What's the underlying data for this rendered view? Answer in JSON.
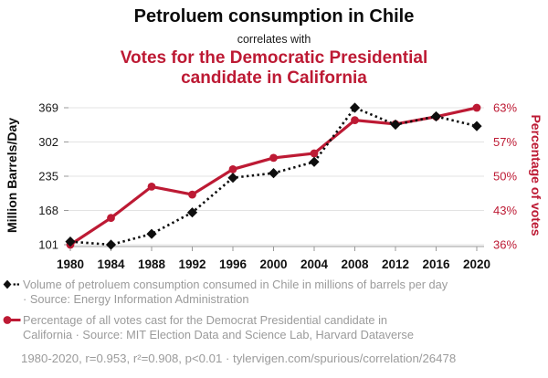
{
  "header": {
    "title": "Petroluem consumption in Chile",
    "subtitle": "correlates with",
    "title2_lines": [
      "Votes for the Democratic Presidential",
      "candidate in California"
    ]
  },
  "chart_data": {
    "type": "line",
    "x_years": [
      1980,
      1984,
      1988,
      1992,
      1996,
      2000,
      2004,
      2008,
      2012,
      2016,
      2020
    ],
    "series": [
      {
        "id": "petroleum-chile",
        "axis": "left",
        "color": "#0e0e0e",
        "line_style": "dotted",
        "marker": "diamond",
        "values": [
          107,
          101,
          122,
          164,
          232,
          241,
          263,
          369,
          336,
          352,
          333
        ],
        "legend_lines": [
          "Volume of petroluem consumption consumed in Chile in millions of barrels per day",
          "· Source: Energy Information Administration"
        ]
      },
      {
        "id": "democrat-votes-california",
        "axis": "right",
        "color": "#bd1a34",
        "line_style": "solid",
        "marker": "circle",
        "values": [
          35.9,
          41.3,
          47.6,
          46.0,
          51.1,
          53.4,
          54.3,
          61.0,
          60.2,
          61.7,
          63.5
        ],
        "legend_lines": [
          "Percentage of all votes cast for the Democrat Presidential candidate in",
          "California · Source: MIT Election Data and Science Lab, Harvard Dataverse"
        ]
      }
    ],
    "left_axis": {
      "label": "Million Barrels/Day",
      "tick_labels": [
        "369",
        "302",
        "235",
        "168",
        "101"
      ],
      "range": [
        101,
        369
      ]
    },
    "right_axis": {
      "label": "Percentage of votes",
      "tick_labels": [
        "63%",
        "57%",
        "50%",
        "43%",
        "36%"
      ],
      "range": [
        35.9,
        63.5
      ]
    },
    "grid": true,
    "legend_position": "bottom"
  },
  "footnote": "1980-2020, r=0.953, r²=0.908, p<0.01 · tylervigen.com/spurious/correlation/26478",
  "colors": {
    "accent_red": "#bd1a34",
    "series_black": "#0e0e0e",
    "legend_gray": "#9b9b9b",
    "grid_line": "#e3e3e3",
    "axis_line": "#999999"
  }
}
